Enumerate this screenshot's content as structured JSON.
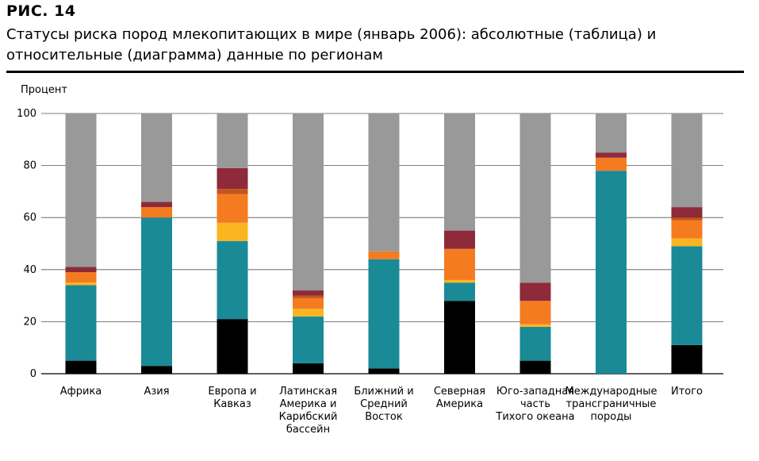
{
  "figure_label": "РИС. 14",
  "title": "Статусы риска пород млекопитающих в мире (январь 2006): абсолютные (таблица) и относительные (диаграмма) данные по регионам",
  "chart_data": {
    "type": "bar",
    "stacked": true,
    "ylabel": "Процент",
    "ylim": [
      0,
      100
    ],
    "yticks": [
      0,
      20,
      40,
      60,
      80,
      100
    ],
    "grid": true,
    "categories": [
      "Африка",
      "Азия",
      "Европа и Кавказ",
      "Латинская Америка и Карибский бассейн",
      "Ближний и Средний Восток",
      "Северная Америка",
      "Юго-западная часть Тихого океана",
      "Международные трансграничные породы",
      "Итого"
    ],
    "category_lines": [
      [
        "Африка"
      ],
      [
        "Азия"
      ],
      [
        "Европа и",
        "Кавказ"
      ],
      [
        "Латинская",
        "Америка и",
        "Карибский",
        "бассейн"
      ],
      [
        "Ближний и",
        "Средний",
        "Восток"
      ],
      [
        "Северная",
        "Америка"
      ],
      [
        "Юго-западная",
        "часть",
        "Тихого океана"
      ],
      [
        "Международные",
        "трансграничные",
        "породы"
      ],
      [
        "Итого"
      ]
    ],
    "series": [
      {
        "color": "#000000",
        "values": [
          5,
          3,
          21,
          4,
          2,
          28,
          5,
          0,
          11
        ]
      },
      {
        "color": "#1a8a97",
        "values": [
          29,
          57,
          30,
          18,
          42,
          7,
          13,
          78,
          38
        ]
      },
      {
        "color": "#fbb521",
        "values": [
          1,
          0,
          7,
          3,
          0,
          1,
          1,
          0,
          3
        ]
      },
      {
        "color": "#f47b20",
        "values": [
          4,
          4,
          11,
          4,
          3,
          12,
          9,
          5,
          7
        ]
      },
      {
        "color": "#c4561a",
        "values": [
          0,
          0,
          2,
          1,
          0,
          0,
          0,
          0,
          1
        ]
      },
      {
        "color": "#8e2a3a",
        "values": [
          2,
          2,
          8,
          2,
          0,
          7,
          7,
          2,
          4
        ]
      },
      {
        "color": "#999999",
        "values": [
          59,
          34,
          21,
          68,
          53,
          45,
          65,
          15,
          36
        ]
      }
    ]
  }
}
